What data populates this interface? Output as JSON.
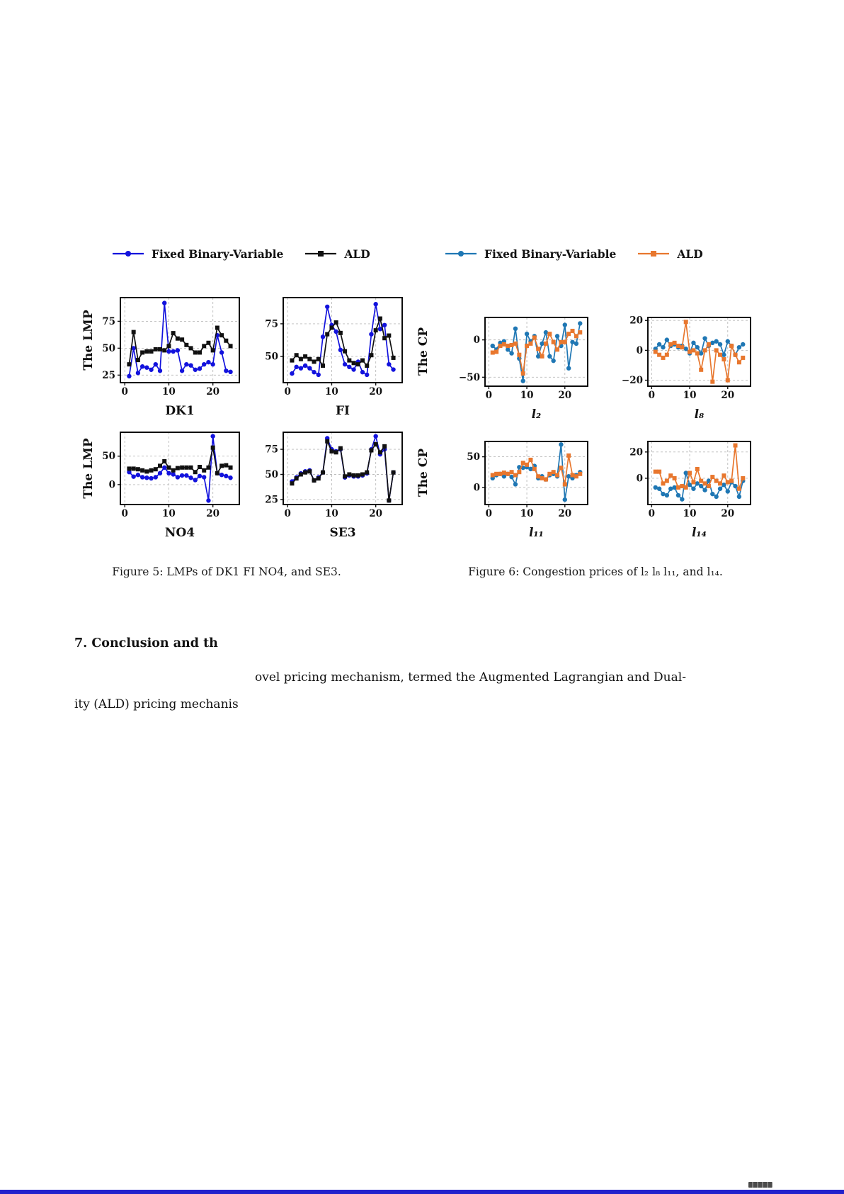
{
  "legend_fig5": {
    "items": [
      {
        "label": "Fixed Binary-Variable",
        "color": "#1212dd",
        "marker": "circle"
      },
      {
        "label": "ALD",
        "color": "#111111",
        "marker": "square"
      }
    ]
  },
  "legend_fig6": {
    "items": [
      {
        "label": "Fixed Binary-Variable",
        "color": "#1f77b4",
        "marker": "circle"
      },
      {
        "label": "ALD",
        "color": "#e8772e",
        "marker": "square"
      }
    ]
  },
  "row_labels": {
    "lmp": "The LMP",
    "cp": "The CP"
  },
  "captions": {
    "figure5": "Figure 5: LMPs of DK1 FI NO4, and SE3.",
    "figure6": "Figure 6: Congestion prices of l₂ l₈ l₁₁, and l₁₄."
  },
  "section": {
    "heading": "7. Conclusion and th",
    "para_line1": "ovel pricing mechanism, termed the Augmented Lagrangian and Dual-",
    "para_line2": "ity (ALD) pricing mechanis"
  },
  "chart_data": [
    {
      "type": "line",
      "title": "DK1",
      "ylabel": "The LMP",
      "xlim": [
        -1,
        26
      ],
      "ylim": [
        18,
        97
      ],
      "xticks": [
        0,
        10,
        20
      ],
      "yticks": [
        25,
        50,
        75
      ],
      "series": [
        {
          "name": "Fixed Binary-Variable",
          "color": "#1212dd",
          "marker": "circle",
          "values": [
            24,
            50,
            27,
            33,
            32,
            30,
            35,
            29,
            92,
            47,
            47,
            48,
            29,
            35,
            34,
            30,
            31,
            35,
            37,
            35,
            62,
            46,
            29,
            28
          ]
        },
        {
          "name": "ALD",
          "color": "#111111",
          "marker": "square",
          "values": [
            35,
            65,
            39,
            46,
            47,
            47,
            49,
            49,
            48,
            52,
            64,
            59,
            58,
            53,
            50,
            46,
            46,
            52,
            55,
            48,
            69,
            62,
            57,
            52
          ]
        }
      ]
    },
    {
      "type": "line",
      "title": "FI",
      "ylabel": "The LMP",
      "xlim": [
        -1,
        26
      ],
      "ylim": [
        30,
        95
      ],
      "xticks": [
        0,
        10,
        20
      ],
      "yticks": [
        50,
        75
      ],
      "series": [
        {
          "name": "Fixed Binary-Variable",
          "color": "#1212dd",
          "marker": "circle",
          "values": [
            37,
            42,
            41,
            43,
            41,
            38,
            36,
            65,
            88,
            74,
            69,
            55,
            44,
            42,
            40,
            46,
            38,
            36,
            67,
            90,
            71,
            74,
            44,
            40
          ]
        },
        {
          "name": "ALD",
          "color": "#111111",
          "marker": "square",
          "values": [
            47,
            51,
            48,
            50,
            48,
            46,
            48,
            43,
            67,
            72,
            76,
            68,
            54,
            47,
            45,
            44,
            47,
            43,
            51,
            70,
            79,
            64,
            66,
            49
          ]
        }
      ]
    },
    {
      "type": "line",
      "title": "NO4",
      "ylabel": "The LMP",
      "xlim": [
        -1,
        26
      ],
      "ylim": [
        -35,
        92
      ],
      "xticks": [
        0,
        10,
        20
      ],
      "yticks": [
        0,
        50
      ],
      "series": [
        {
          "name": "Fixed Binary-Variable",
          "color": "#1212dd",
          "marker": "circle",
          "values": [
            22,
            14,
            17,
            13,
            12,
            11,
            13,
            20,
            30,
            20,
            18,
            13,
            16,
            16,
            12,
            8,
            15,
            13,
            -28,
            85,
            20,
            17,
            15,
            12
          ]
        },
        {
          "name": "ALD",
          "color": "#111111",
          "marker": "square",
          "values": [
            28,
            28,
            27,
            25,
            23,
            25,
            27,
            33,
            41,
            30,
            25,
            29,
            30,
            30,
            30,
            22,
            31,
            25,
            30,
            65,
            20,
            33,
            34,
            30
          ]
        }
      ]
    },
    {
      "type": "line",
      "title": "SE3",
      "ylabel": "The LMP",
      "xlim": [
        -1,
        26
      ],
      "ylim": [
        20,
        92
      ],
      "xticks": [
        0,
        10,
        20
      ],
      "yticks": [
        25,
        50,
        75
      ],
      "series": [
        {
          "name": "Fixed Binary-Variable",
          "color": "#1212dd",
          "marker": "circle",
          "values": [
            43,
            47,
            51,
            53,
            54,
            44,
            47,
            52,
            86,
            75,
            73,
            75,
            47,
            49,
            48,
            48,
            49,
            51,
            75,
            88,
            70,
            75,
            24,
            52
          ]
        },
        {
          "name": "ALD",
          "color": "#111111",
          "marker": "square",
          "values": [
            41,
            46,
            50,
            52,
            53,
            44,
            46,
            52,
            83,
            73,
            72,
            76,
            48,
            50,
            49,
            49,
            50,
            52,
            74,
            80,
            72,
            78,
            24,
            52
          ]
        }
      ]
    },
    {
      "type": "line",
      "title": "l₂",
      "ylabel": "The CP",
      "xlim": [
        -1,
        26
      ],
      "ylim": [
        -62,
        30
      ],
      "xticks": [
        0,
        10,
        20
      ],
      "yticks": [
        -50,
        0
      ],
      "series": [
        {
          "name": "Fixed Binary-Variable",
          "color": "#1f77b4",
          "marker": "circle",
          "values": [
            -8,
            -13,
            -4,
            -2,
            -13,
            -18,
            15,
            -25,
            -55,
            8,
            -2,
            5,
            -22,
            -5,
            10,
            -22,
            -28,
            5,
            -8,
            20,
            -38,
            -3,
            -5,
            22
          ]
        },
        {
          "name": "ALD",
          "color": "#e8772e",
          "marker": "square",
          "values": [
            -17,
            -16,
            -8,
            -6,
            -8,
            -7,
            -5,
            -20,
            -45,
            -8,
            -5,
            3,
            -12,
            -22,
            -5,
            8,
            -3,
            -13,
            -3,
            -3,
            8,
            12,
            5,
            10
          ]
        }
      ]
    },
    {
      "type": "line",
      "title": "l₈",
      "ylabel": "The CP",
      "xlim": [
        -1,
        26
      ],
      "ylim": [
        -24,
        22
      ],
      "xticks": [
        0,
        10,
        20
      ],
      "yticks": [
        -20,
        0,
        20
      ],
      "series": [
        {
          "name": "Fixed Binary-Variable",
          "color": "#1f77b4",
          "marker": "circle",
          "values": [
            1,
            4,
            2,
            7,
            3,
            4,
            2,
            3,
            1,
            -2,
            5,
            2,
            -2,
            8,
            3,
            5,
            6,
            4,
            -3,
            6,
            3,
            -3,
            2,
            4
          ]
        },
        {
          "name": "ALD",
          "color": "#e8772e",
          "marker": "square",
          "values": [
            -1,
            -3,
            -5,
            -3,
            4,
            5,
            3,
            2,
            19,
            -1,
            0,
            -2,
            -13,
            0,
            4,
            -21,
            0,
            -3,
            -6,
            -20,
            3,
            -3,
            -8,
            -5
          ]
        }
      ]
    },
    {
      "type": "line",
      "title": "l₁₁",
      "ylabel": "The CP",
      "xlim": [
        -1,
        26
      ],
      "ylim": [
        -28,
        75
      ],
      "xticks": [
        0,
        10,
        20
      ],
      "yticks": [
        0,
        50
      ],
      "series": [
        {
          "name": "Fixed Binary-Variable",
          "color": "#1f77b4",
          "marker": "circle",
          "values": [
            15,
            20,
            22,
            18,
            22,
            17,
            5,
            33,
            32,
            33,
            30,
            35,
            15,
            18,
            13,
            20,
            22,
            18,
            70,
            -20,
            18,
            15,
            20,
            25
          ]
        },
        {
          "name": "ALD",
          "color": "#e8772e",
          "marker": "square",
          "values": [
            20,
            22,
            22,
            24,
            22,
            25,
            20,
            25,
            40,
            37,
            45,
            30,
            18,
            15,
            13,
            22,
            25,
            20,
            32,
            5,
            52,
            20,
            18,
            22
          ]
        }
      ]
    },
    {
      "type": "line",
      "title": "l₁₄",
      "ylabel": "The CP",
      "xlim": [
        -1,
        26
      ],
      "ylim": [
        -20,
        28
      ],
      "xticks": [
        0,
        10,
        20
      ],
      "yticks": [
        0,
        20
      ],
      "series": [
        {
          "name": "Fixed Binary-Variable",
          "color": "#1f77b4",
          "marker": "circle",
          "values": [
            -7,
            -8,
            -12,
            -13,
            -8,
            -7,
            -13,
            -16,
            4,
            -5,
            -8,
            -4,
            -6,
            -9,
            -2,
            -12,
            -14,
            -8,
            -5,
            -10,
            -3,
            -6,
            -14,
            -2
          ]
        },
        {
          "name": "ALD",
          "color": "#e8772e",
          "marker": "square",
          "values": [
            5,
            5,
            -4,
            -2,
            2,
            0,
            -7,
            -6,
            -7,
            4,
            -3,
            7,
            -2,
            -4,
            -6,
            1,
            -2,
            -4,
            2,
            -3,
            -2,
            25,
            -8,
            0
          ]
        }
      ]
    }
  ]
}
